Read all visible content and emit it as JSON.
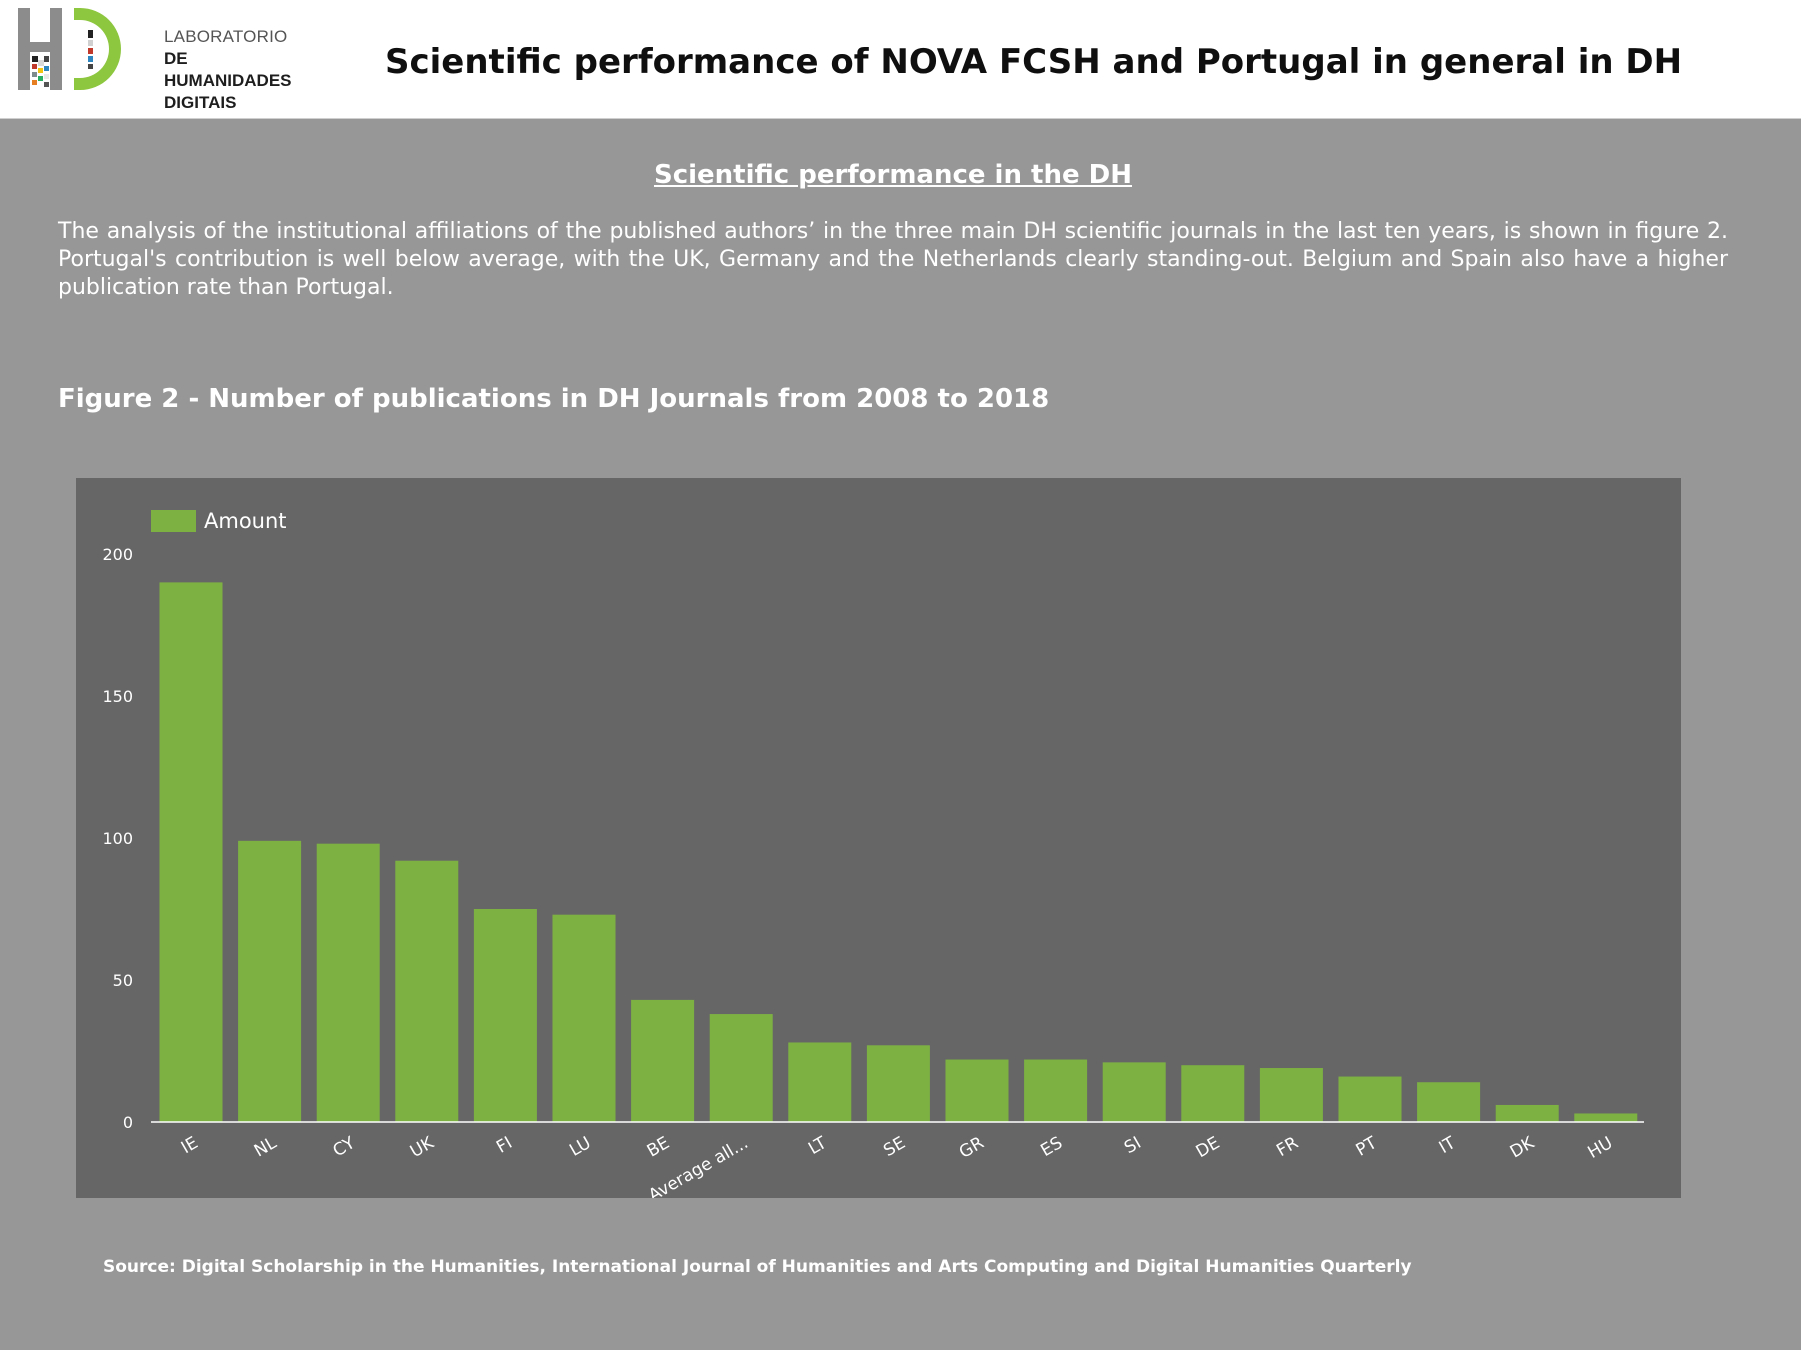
{
  "header": {
    "logo": {
      "mark": "HD",
      "line1": "LABORATORIO",
      "line2": "DE HUMANIDADES",
      "line3": "DIGITAIS"
    },
    "title": "Scientific performance of NOVA FCSH and Portugal in general in DH"
  },
  "section": {
    "title": "Scientific performance in the DH",
    "body": "The analysis of the institutional affiliations of the published authors’ in the three main DH scientific journals in the last ten years, is shown in figure 2. Portugal's contribution is well below average, with the UK, Germany and the Netherlands clearly standing-out. Belgium and Spain also have a higher publication rate than Portugal."
  },
  "figure": {
    "title": "Figure 2 - Number of publications in DH Journals from 2008 to 2018"
  },
  "source": "Source: Digital Scholarship in the Humanities, International Journal of Humanities and Arts Computing and Digital Humanities Quarterly",
  "colors": {
    "bar": "#7db243",
    "panel": "#666666",
    "page": "#979797",
    "logo_gray": "#8c8c8c",
    "logo_green": "#8dc63f"
  },
  "chart_data": {
    "type": "bar",
    "title": "Figure 2 - Number of publications in DH Journals from 2008 to 2018",
    "xlabel": "",
    "ylabel": "",
    "ylim": [
      0,
      200
    ],
    "yticks": [
      0,
      50,
      100,
      150,
      200
    ],
    "grid": false,
    "legend": {
      "position": "top-left",
      "entries": [
        "Amount"
      ]
    },
    "categories": [
      "IE",
      "NL",
      "CY",
      "UK",
      "FI",
      "LU",
      "BE",
      "Average all...",
      "LT",
      "SE",
      "GR",
      "ES",
      "SI",
      "DE",
      "FR",
      "PT",
      "IT",
      "DK",
      "HU"
    ],
    "series": [
      {
        "name": "Amount",
        "values": [
          190,
          99,
          98,
          92,
          75,
          73,
          43,
          38,
          28,
          27,
          22,
          22,
          21,
          20,
          19,
          16,
          14,
          6,
          3
        ]
      }
    ]
  }
}
